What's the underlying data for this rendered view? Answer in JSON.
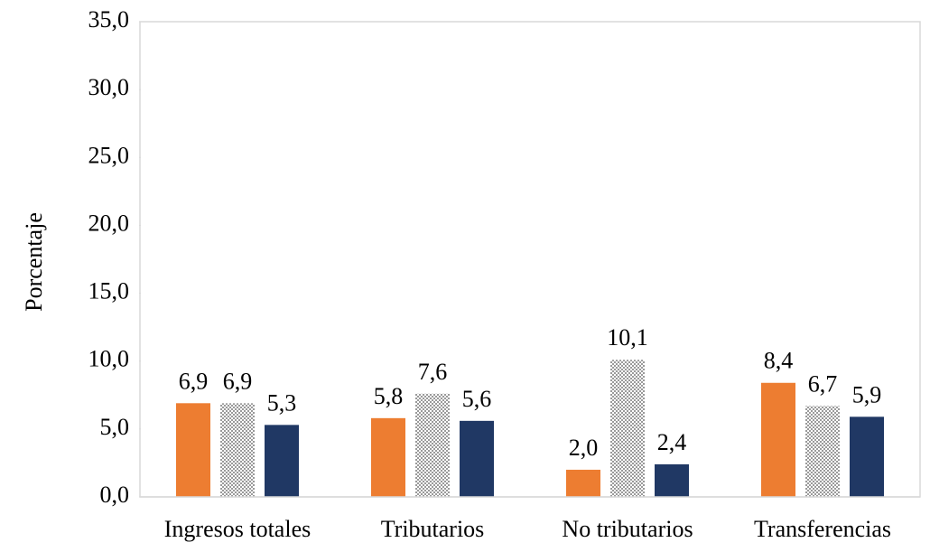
{
  "chart_data": {
    "type": "bar",
    "y_label": "Porcentaje",
    "categories": [
      "Ingresos totales",
      "Tributarios",
      "No tributarios",
      "Transferencias"
    ],
    "series": [
      {
        "color": "#ed7d31",
        "values": [
          6.9,
          5.8,
          2.0,
          8.4
        ],
        "value_labels": [
          "6,9",
          "5,8",
          "2,0",
          "8,4"
        ]
      },
      {
        "color": "#9a9a9a",
        "pattern": "dotted",
        "values": [
          6.9,
          7.6,
          10.1,
          6.7
        ],
        "value_labels": [
          "6,9",
          "7,6",
          "10,1",
          "6,7"
        ]
      },
      {
        "color": "#203864",
        "values": [
          5.3,
          5.6,
          2.4,
          5.9
        ],
        "value_labels": [
          "5,3",
          "5,6",
          "2,4",
          "5,9"
        ]
      }
    ],
    "ylim": [
      0,
      35
    ],
    "yticks": [
      {
        "value": 0,
        "label": "0,0"
      },
      {
        "value": 5,
        "label": "5,0"
      },
      {
        "value": 10,
        "label": "10,0"
      },
      {
        "value": 15,
        "label": "15,0"
      },
      {
        "value": 20,
        "label": "20,0"
      },
      {
        "value": 25,
        "label": "25,0"
      },
      {
        "value": 30,
        "label": "30,0"
      },
      {
        "value": 35,
        "label": "35,0"
      }
    ],
    "grid": false
  }
}
